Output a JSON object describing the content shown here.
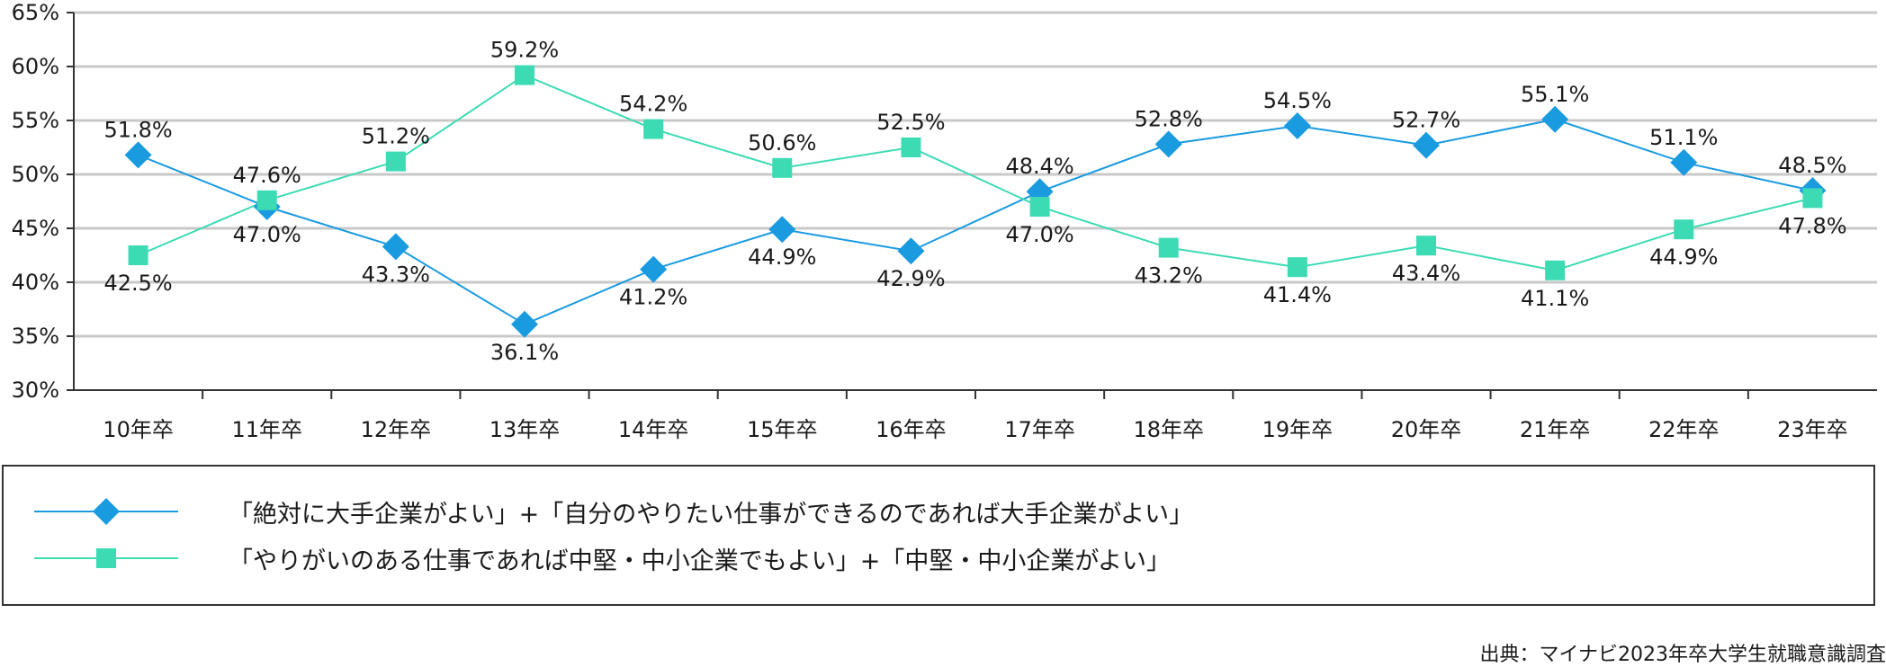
{
  "chart_data": {
    "type": "line",
    "title": "",
    "xlabel": "",
    "ylabel": "",
    "ylim": [
      30,
      65
    ],
    "yticks": [
      "30%",
      "35%",
      "40%",
      "45%",
      "50%",
      "55%",
      "60%",
      "65%"
    ],
    "categories": [
      "10年卒",
      "11年卒",
      "12年卒",
      "13年卒",
      "14年卒",
      "15年卒",
      "16年卒",
      "17年卒",
      "18年卒",
      "19年卒",
      "20年卒",
      "21年卒",
      "22年卒",
      "23年卒"
    ],
    "series": [
      {
        "name": "「絶対に大手企業がよい」+「自分のやりたい仕事ができるのであれば大手企業がよい」",
        "values": [
          51.8,
          47.0,
          43.3,
          36.1,
          41.2,
          44.9,
          42.9,
          48.4,
          52.8,
          54.5,
          52.7,
          55.1,
          51.1,
          48.5
        ],
        "labels": [
          "51.8%",
          "47.0%",
          "43.3%",
          "36.1%",
          "41.2%",
          "44.9%",
          "42.9%",
          "48.4%",
          "52.8%",
          "54.5%",
          "52.7%",
          "55.1%",
          "51.1%",
          "48.5%"
        ],
        "color": "#1A9BE0",
        "marker": "diamond"
      },
      {
        "name": "「やりがいのある仕事であれば中堅・中小企業でもよい」+「中堅・中小企業がよい」",
        "values": [
          42.5,
          47.6,
          51.2,
          59.2,
          54.2,
          50.6,
          52.5,
          47.0,
          43.2,
          41.4,
          43.4,
          41.1,
          44.9,
          47.8
        ],
        "labels": [
          "42.5%",
          "47.6%",
          "51.2%",
          "59.2%",
          "54.2%",
          "50.6%",
          "52.5%",
          "47.0%",
          "43.2%",
          "41.4%",
          "43.4%",
          "41.1%",
          "44.9%",
          "47.8%"
        ],
        "color": "#3DDBB4",
        "marker": "square"
      }
    ],
    "grid": true,
    "legend_position": "bottom"
  },
  "source": "出典：マイナビ2023年卒大学生就職意識調査"
}
